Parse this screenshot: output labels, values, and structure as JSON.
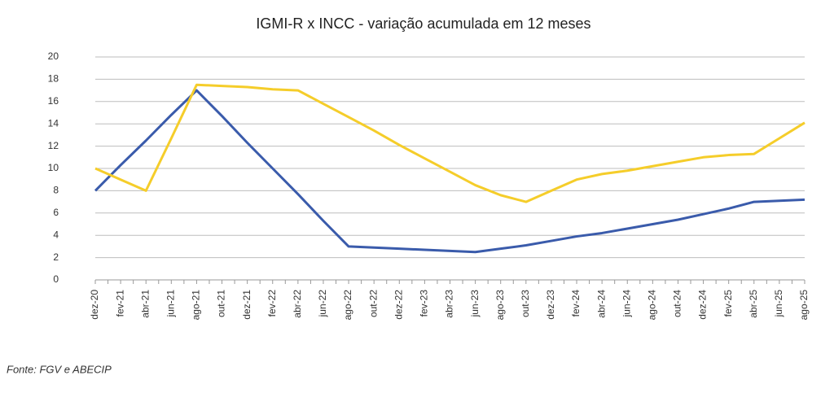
{
  "chart_data": {
    "type": "line",
    "title": "IGMI-R x INCC - variação acumulada em 12 meses",
    "source": "Fonte: FGV e ABECIP",
    "categories": [
      "dez-20",
      "fev-21",
      "abr-21",
      "jun-21",
      "ago-21",
      "out-21",
      "dez-21",
      "fev-22",
      "abr-22",
      "jun-22",
      "ago-22",
      "out-22",
      "dez-22",
      "fev-23",
      "abr-23",
      "jun-23",
      "ago-23",
      "out-23",
      "dez-23",
      "fev-24",
      "abr-24",
      "jun-24",
      "ago-24",
      "out-24",
      "dez-24",
      "fev-25",
      "abr-25",
      "jun-25",
      "ago-25"
    ],
    "series": [
      {
        "color": "#3a5bab",
        "values": [
          8,
          10.3,
          12.5,
          14.8,
          17,
          14.7,
          12.3,
          10,
          7.7,
          5.3,
          3,
          2.9,
          2.8,
          2.7,
          2.6,
          2.5,
          2.8,
          3.1,
          3.5,
          3.9,
          4.2,
          4.6,
          5,
          5.4,
          5.9,
          6.4,
          7,
          7.1,
          7.2
        ]
      },
      {
        "color": "#f5cd2a",
        "values": [
          10,
          9,
          8,
          12.7,
          17.5,
          17.4,
          17.3,
          17.1,
          17,
          15.8,
          14.6,
          13.4,
          12.1,
          10.9,
          9.7,
          8.5,
          7.6,
          7,
          8,
          9,
          9.5,
          9.8,
          10.2,
          10.6,
          11,
          11.2,
          11.3,
          12.7,
          14.1
        ]
      }
    ],
    "ylim": [
      0,
      20
    ],
    "yticks": [
      0,
      2,
      4,
      6,
      8,
      10,
      12,
      14,
      16,
      18,
      20
    ],
    "grid": true
  }
}
